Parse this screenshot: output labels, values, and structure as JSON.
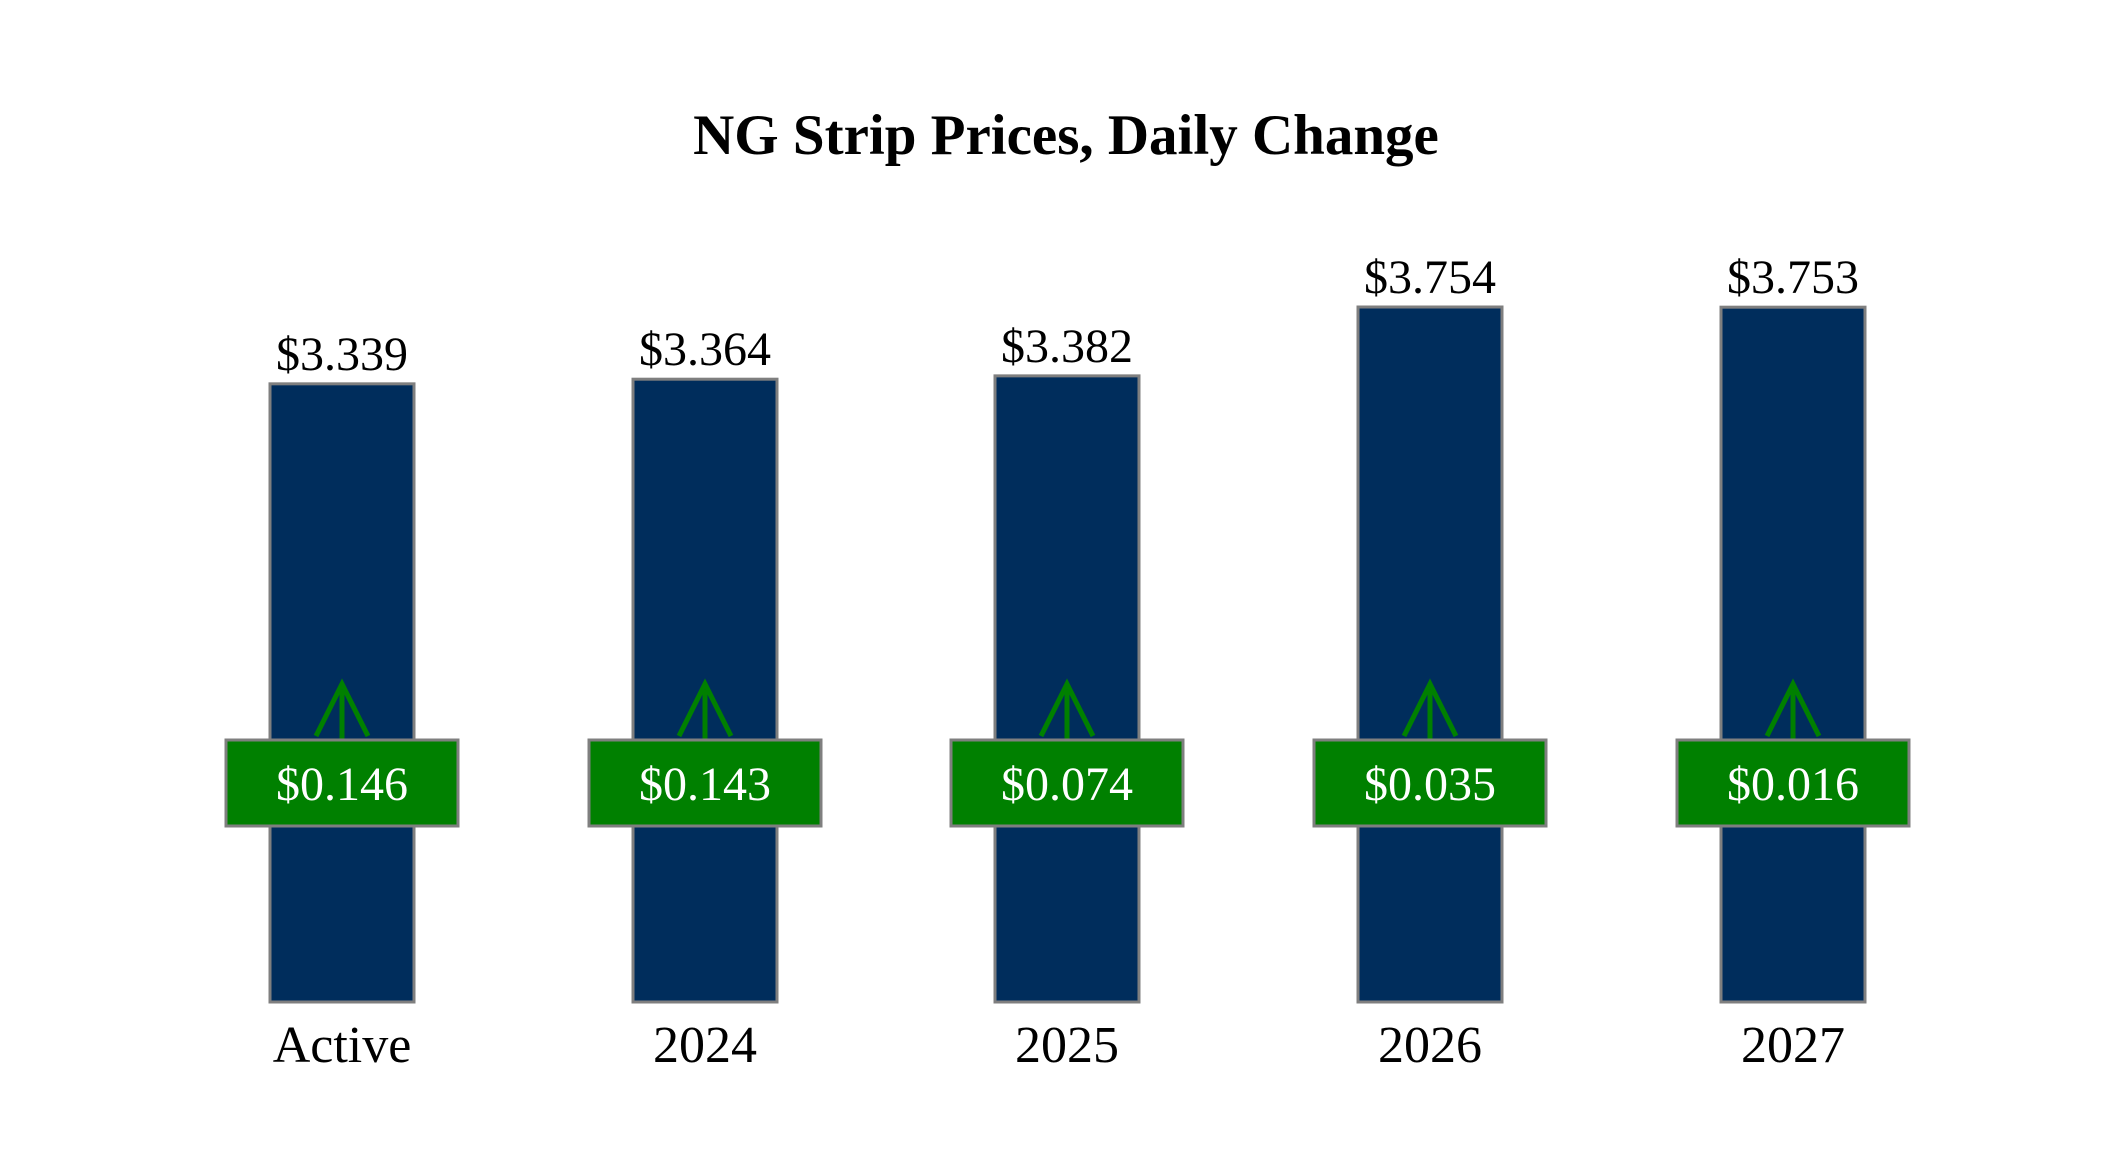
{
  "chart_data": {
    "type": "bar",
    "title": "NG Strip Prices, Daily Change",
    "xlabel": "",
    "ylabel": "",
    "categories": [
      "Active",
      "2024",
      "2025",
      "2026",
      "2027"
    ],
    "values": [
      3.339,
      3.364,
      3.382,
      3.754,
      3.753
    ],
    "value_labels": [
      "$3.339",
      "$3.364",
      "$3.382",
      "$3.754",
      "$3.753"
    ],
    "changes": [
      0.146,
      0.143,
      0.074,
      0.035,
      0.016
    ],
    "change_labels": [
      "$0.146",
      "$0.143",
      "$0.074",
      "$0.035",
      "$0.016"
    ],
    "change_direction": [
      "up",
      "up",
      "up",
      "up",
      "up"
    ],
    "ylim": [
      0,
      3.754
    ],
    "grid": false,
    "legend": "none",
    "colors": {
      "bar": "#002d5c",
      "bar_border": "#7f7f7f",
      "change_box": "#008000",
      "change_border": "#7f7f7f",
      "arrow": "#008000"
    }
  }
}
